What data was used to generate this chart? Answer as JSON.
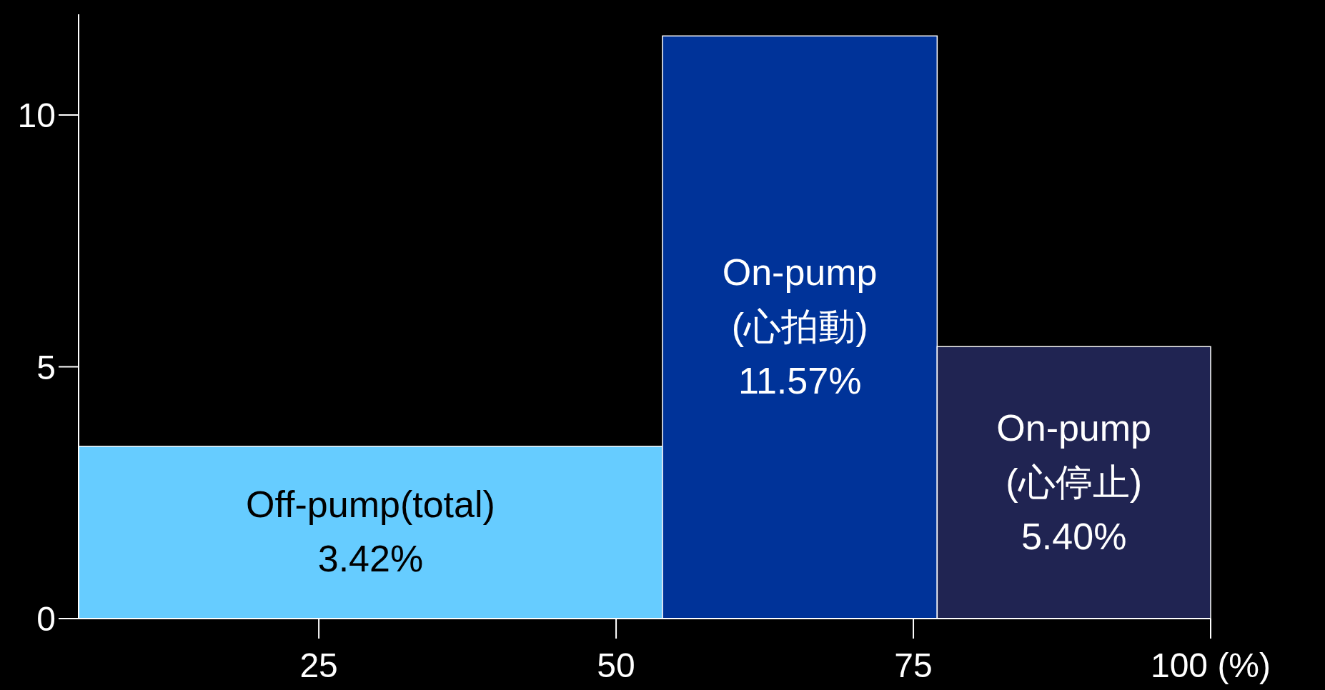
{
  "chart_data": {
    "type": "histogram",
    "bins": [
      4.8,
      53.9,
      77,
      100
    ],
    "values": [
      3.42,
      11.57,
      5.4
    ],
    "categories": [
      "Off-pump(total)",
      "On-pump\n(心拍動)",
      "On-pump\n(心停止)"
    ],
    "value_labels": [
      "3.42%",
      "11.57%",
      "5.40%"
    ],
    "colors": [
      "#66ccff",
      "#003399",
      "#202452"
    ],
    "xlim": [
      4.8,
      100
    ],
    "xticks": [
      25,
      50,
      75,
      {
        "value": 100,
        "label": "100 (%)"
      }
    ],
    "ylim": [
      0,
      12
    ],
    "yticks": [
      0,
      5,
      10
    ],
    "grid": false
  }
}
